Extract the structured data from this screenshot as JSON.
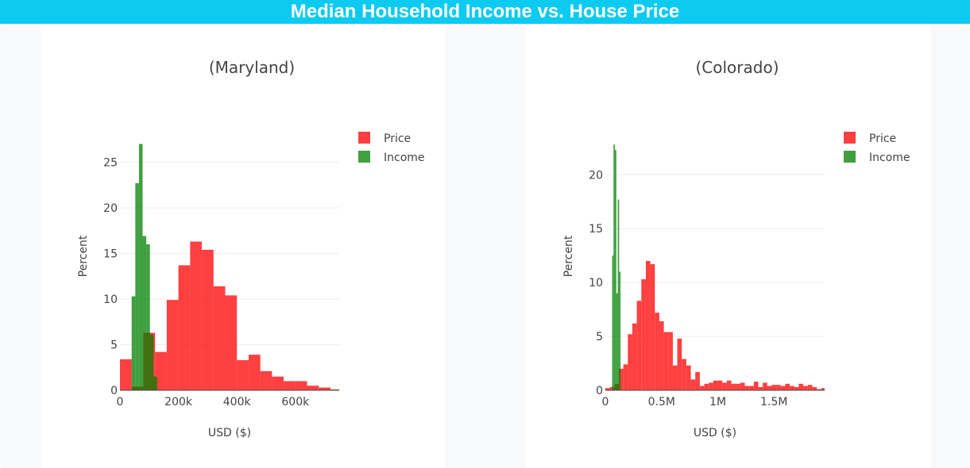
{
  "header": {
    "title": "Median Household Income vs. House Price"
  },
  "colors": {
    "banner": "#0dcaf0",
    "price": "#ff0000",
    "income": "#008000",
    "grid": "#eeeeee"
  },
  "chart_data": [
    {
      "type": "bar",
      "subtype": "overlaid-histogram",
      "title": "(Maryland)",
      "xlabel": "USD ($)",
      "ylabel": "Percent",
      "xlim": [
        0,
        750000
      ],
      "ylim": [
        0,
        28
      ],
      "xticks": [
        0,
        200000,
        400000,
        600000
      ],
      "xtick_labels": [
        "0",
        "200k",
        "400k",
        "600k"
      ],
      "yticks": [
        0,
        5,
        10,
        15,
        20,
        25
      ],
      "ytick_labels": [
        "0",
        "5",
        "10",
        "15",
        "20",
        "25"
      ],
      "grid": true,
      "legend": "top-right",
      "opacity": 0.75,
      "series": [
        {
          "name": "Price",
          "color": "#ff0000",
          "bin_start": 0,
          "bin_size": 40000,
          "values": [
            3.4,
            0.4,
            6.3,
            4.2,
            9.9,
            13.7,
            16.3,
            15.4,
            11.4,
            10.4,
            3.3,
            3.9,
            2.1,
            1.5,
            1.0,
            1.0,
            0.5,
            0.3,
            0.1
          ]
        },
        {
          "name": "Income",
          "color": "#008000",
          "bin_start": 40000,
          "bin_size": 12500,
          "values": [
            10.3,
            22.7,
            27.0,
            16.9,
            16.0,
            6.1,
            1.5
          ]
        }
      ]
    },
    {
      "type": "bar",
      "subtype": "overlaid-histogram",
      "title": "(Colorado)",
      "xlabel": "USD ($)",
      "ylabel": "Percent",
      "xlim": [
        0,
        1950000
      ],
      "ylim": [
        0,
        23.7
      ],
      "xticks": [
        0,
        500000,
        1000000,
        1500000
      ],
      "xtick_labels": [
        "0",
        "0.5M",
        "1M",
        "1.5M"
      ],
      "yticks": [
        0,
        5,
        10,
        15,
        20
      ],
      "ytick_labels": [
        "0",
        "5",
        "10",
        "15",
        "20"
      ],
      "grid": true,
      "legend": "top-right",
      "opacity": 0.75,
      "series": [
        {
          "name": "Price",
          "color": "#ff0000",
          "bin_start": 0,
          "bin_size": 40000,
          "values": [
            0.2,
            0.3,
            0.6,
            2.0,
            2.4,
            5.2,
            6.2,
            8.3,
            10.3,
            12.0,
            11.7,
            7.2,
            6.4,
            5.4,
            5.4,
            2.3,
            4.8,
            2.9,
            2.3,
            1.0,
            1.7,
            0.4,
            0.6,
            0.7,
            0.9,
            0.9,
            0.7,
            0.9,
            0.6,
            0.6,
            0.7,
            0.4,
            0.4,
            0.8,
            0.3,
            0.7,
            0.4,
            0.5,
            0.5,
            0.4,
            0.6,
            0.4,
            0.3,
            0.6,
            0.4,
            0.5,
            0.3,
            0.1,
            0.2
          ]
        },
        {
          "name": "Income",
          "color": "#008000",
          "bin_start": 60000,
          "bin_size": 12500,
          "values": [
            12.5,
            22.8,
            22.3,
            9.0,
            17.7,
            11.0
          ]
        }
      ]
    }
  ]
}
